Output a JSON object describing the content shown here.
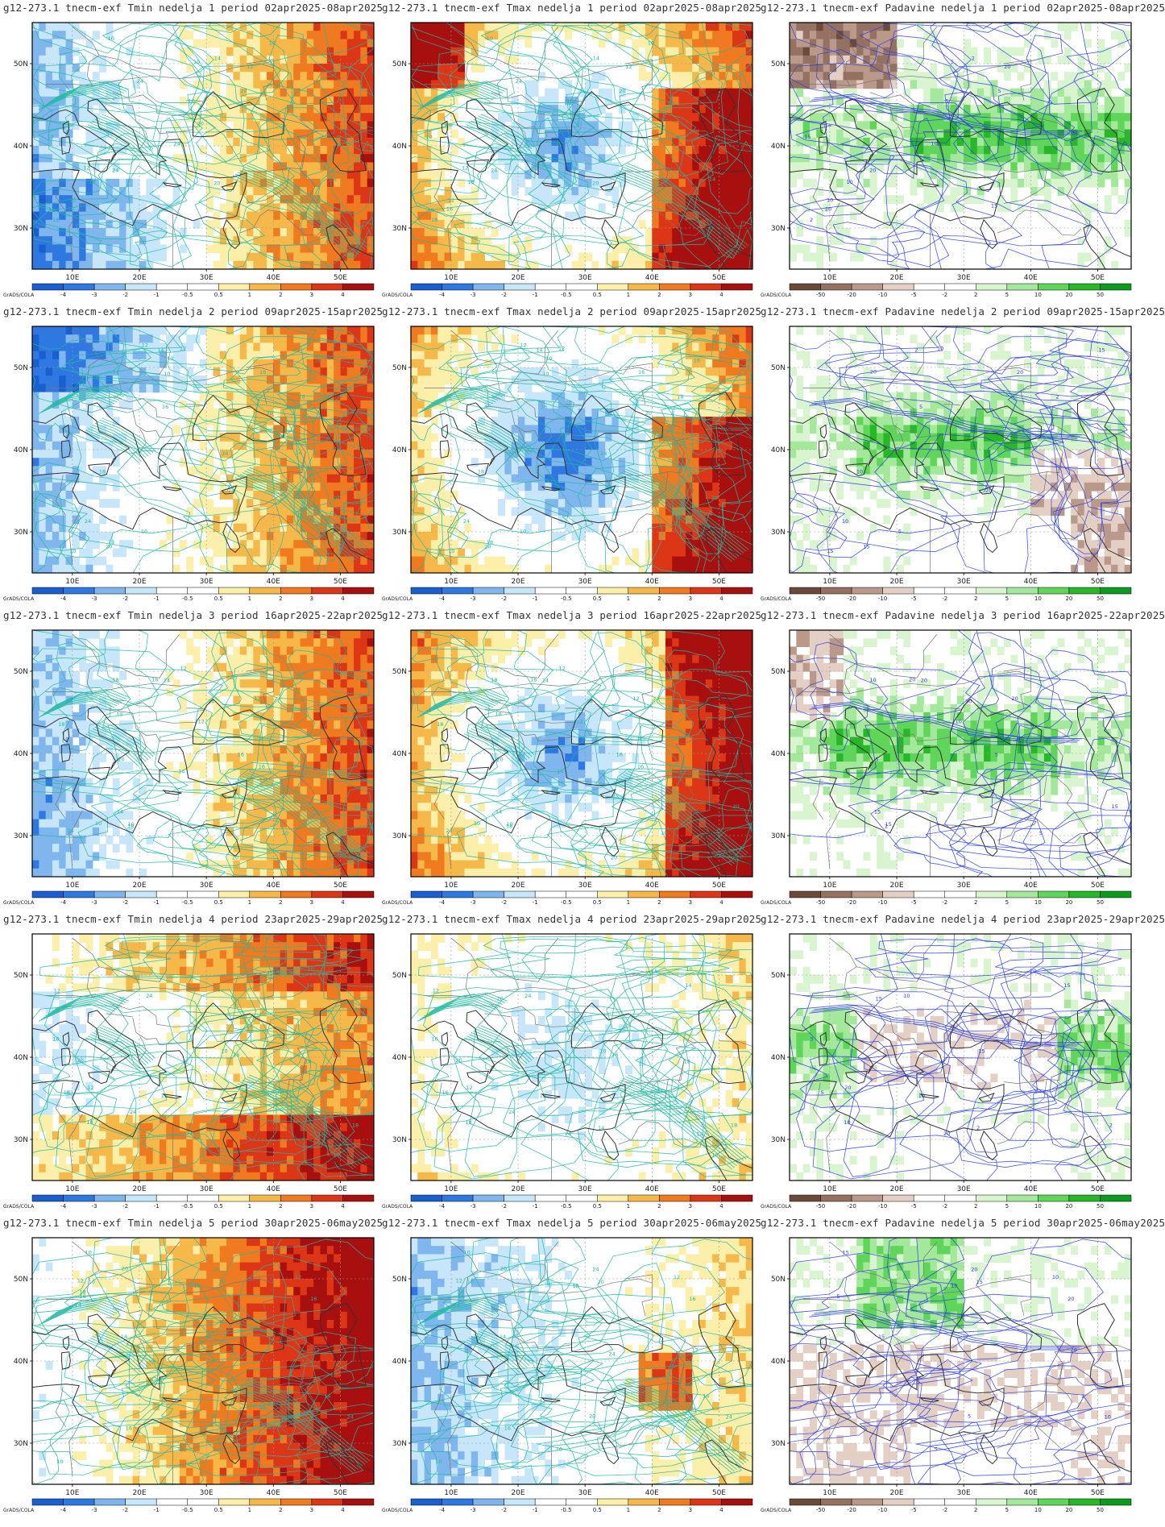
{
  "colors": {
    "tmin_palette": [
      "#1a5fd0",
      "#2f78e2",
      "#7fb6ee",
      "#c7e6f9",
      "#ffffff",
      "#ffffff",
      "#fcefaa",
      "#f7b84a",
      "#ef7a1f",
      "#dd3616",
      "#a80f0f"
    ],
    "tmax_palette": [
      "#1a5fd0",
      "#2f78e2",
      "#7fb6ee",
      "#c7e6f9",
      "#ffffff",
      "#ffffff",
      "#fcefaa",
      "#f7b84a",
      "#ef7a1f",
      "#dd3616",
      "#a80f0f"
    ],
    "precip_palette": [
      "#6b4a3a",
      "#947160",
      "#bb998a",
      "#e4cfc5",
      "#ffffff",
      "#ffffff",
      "#d9f5d0",
      "#a3e89b",
      "#5fd65a",
      "#28b728",
      "#0c9a20"
    ],
    "contour_temp": "#21b8a2",
    "contour_precip": "#2a3ee0",
    "border": "#777777",
    "coast": "#333333"
  },
  "colorbars": {
    "temp_ticks": [
      "-4",
      "-3",
      "-2",
      "-1",
      "-0.5",
      "0.5",
      "1",
      "2",
      "3",
      "4"
    ],
    "precip_ticks": [
      "-50",
      "-20",
      "-10",
      "-5",
      "-2",
      "2",
      "5",
      "10",
      "20",
      "50"
    ]
  },
  "credit": "GrADS/COLA",
  "axes": {
    "lon_labels": [
      "10E",
      "20E",
      "30E",
      "40E",
      "50E"
    ],
    "lat_labels": [
      "50N",
      "40N",
      "30N"
    ]
  },
  "panels": [
    {
      "title": "g12-273.1 tnecm-exf Tmin nedelja 1 period 02apr2025-08apr2025",
      "variable": "tmin",
      "week": 1
    },
    {
      "title": "g12-273.1 tnecm-exf Tmax nedelja 1 period 02apr2025-08apr2025",
      "variable": "tmax",
      "week": 1
    },
    {
      "title": "g12-273.1 tnecm-exf Padavine nedelja 1 period 02apr2025-08apr2025",
      "variable": "precip",
      "week": 1
    },
    {
      "title": "g12-273.1 tnecm-exf Tmin nedelja 2 period 09apr2025-15apr2025",
      "variable": "tmin",
      "week": 2
    },
    {
      "title": "g12-273.1 tnecm-exf Tmax nedelja 2 period 09apr2025-15apr2025",
      "variable": "tmax",
      "week": 2
    },
    {
      "title": "g12-273.1 tnecm-exf Padavine nedelja 2 period 09apr2025-15apr2025",
      "variable": "precip",
      "week": 2
    },
    {
      "title": "g12-273.1 tnecm-exf Tmin nedelja 3 period 16apr2025-22apr2025",
      "variable": "tmin",
      "week": 3
    },
    {
      "title": "g12-273.1 tnecm-exf Tmax nedelja 3 period 16apr2025-22apr2025",
      "variable": "tmax",
      "week": 3
    },
    {
      "title": "g12-273.1 tnecm-exf Padavine nedelja 3 period 16apr2025-22apr2025",
      "variable": "precip",
      "week": 3
    },
    {
      "title": "g12-273.1 tnecm-exf Tmin nedelja 4 period 23apr2025-29apr2025",
      "variable": "tmin",
      "week": 4
    },
    {
      "title": "g12-273.1 tnecm-exf Tmax nedelja 4 period 23apr2025-29apr2025",
      "variable": "tmax",
      "week": 4
    },
    {
      "title": "g12-273.1 tnecm-exf Padavine nedelja 4 period 23apr2025-29apr2025",
      "variable": "precip",
      "week": 4
    },
    {
      "title": "g12-273.1 tnecm-exf Tmin nedelja 5 period 30apr2025-06may2025",
      "variable": "tmin",
      "week": 5
    },
    {
      "title": "g12-273.1 tnecm-exf Tmax nedelja 5 period 30apr2025-06may2025",
      "variable": "tmax",
      "week": 5
    },
    {
      "title": "g12-273.1 tnecm-exf Padavine nedelja 5 period 30apr2025-06may2025",
      "variable": "precip",
      "week": 5
    }
  ]
}
